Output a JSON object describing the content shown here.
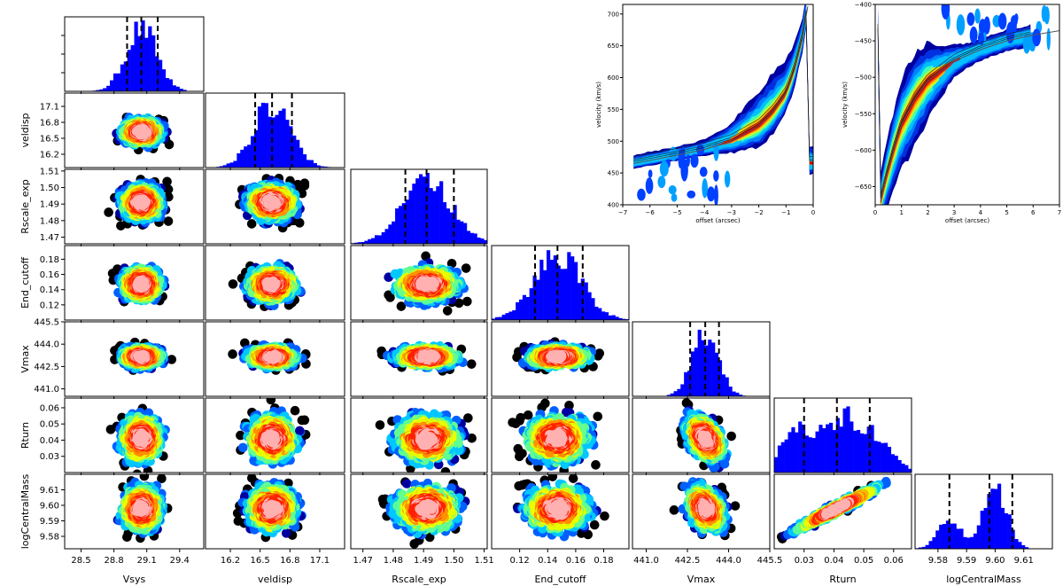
{
  "colors": {
    "histogram": "#0000ff",
    "outlier_points": "#000000",
    "density_scale": [
      "#0000a0",
      "#0060ff",
      "#00c8ff",
      "#60ff90",
      "#e8ff00",
      "#ff9000",
      "#ff2000",
      "#ffb0b0"
    ],
    "quantile_lines": "#000000",
    "model_curve": "#555555"
  },
  "chart_data": {
    "type": "corner",
    "parameters": [
      "Vsys",
      "veldisp",
      "Rscale_exp",
      "End_cutoff",
      "Vmax",
      "Rturn",
      "logCentralMass"
    ],
    "quantiles": {
      "Vsys": [
        28.92,
        29.05,
        29.2
      ],
      "veldisp": [
        16.45,
        16.62,
        16.82
      ],
      "Rscale_exp": [
        1.484,
        1.491,
        1.5
      ],
      "End_cutoff": [
        0.131,
        0.147,
        0.165
      ],
      "Vmax": [
        442.6,
        443.15,
        443.65
      ],
      "Rturn": [
        0.03,
        0.041,
        0.052
      ],
      "logCentralMass": [
        9.584,
        9.598,
        9.606
      ]
    },
    "ranges": {
      "Vsys": [
        28.35,
        29.62
      ],
      "veldisp": [
        15.95,
        17.35
      ],
      "Rscale_exp": [
        1.466,
        1.511
      ],
      "End_cutoff": [
        0.1,
        0.198
      ],
      "Vmax": [
        440.5,
        445.5
      ],
      "Rturn": [
        0.02,
        0.066
      ],
      "logCentralMass": [
        9.572,
        9.62
      ]
    },
    "ticks": {
      "Vsys": [
        "28.5",
        "28.8",
        "29.1",
        "29.4"
      ],
      "veldisp": [
        "16.2",
        "16.5",
        "16.8",
        "17.1"
      ],
      "Rscale_exp": [
        "1.47",
        "1.48",
        "1.49",
        "1.50",
        "1.51"
      ],
      "End_cutoff": [
        "0.12",
        "0.14",
        "0.16",
        "0.18"
      ],
      "Vmax": [
        "441.0",
        "442.5",
        "444.0",
        "445.5"
      ],
      "Rturn": [
        "0.03",
        "0.04",
        "0.05",
        "0.06"
      ],
      "logCentralMass": [
        "9.58",
        "9.59",
        "9.60",
        "9.61"
      ]
    },
    "ytick_labels": {
      "veldisp": [
        "17.1",
        "16.8",
        "16.5",
        "16.2"
      ],
      "Rscale_exp": [
        "1.51",
        "1.50",
        "1.49",
        "1.48",
        "1.47"
      ],
      "End_cutoff": [
        "0.18",
        "0.16",
        "0.14",
        "0.12"
      ],
      "Vmax": [
        "445.5",
        "444.0",
        "442.5",
        "441.0"
      ],
      "Rturn": [
        "0.06",
        "0.05",
        "0.04",
        "0.03"
      ],
      "logCentralMass": [
        "9.61",
        "9.60",
        "9.59",
        "9.58"
      ]
    },
    "pv_left": {
      "type": "contour",
      "xlabel": "offset (arcsec)",
      "ylabel": "velocity (km/s)",
      "xlim": [
        -7,
        0
      ],
      "ylim": [
        400,
        715
      ],
      "xticks": [
        "−7",
        "−6",
        "−5",
        "−4",
        "−3",
        "−2",
        "−1",
        "0"
      ],
      "yticks": [
        "700",
        "650",
        "600",
        "550",
        "500",
        "450",
        "400"
      ],
      "model_curve": [
        [
          -6.6,
          465
        ],
        [
          -5,
          478
        ],
        [
          -4,
          487
        ],
        [
          -3,
          500
        ],
        [
          -2,
          524
        ],
        [
          -1.5,
          545
        ],
        [
          -1,
          575
        ],
        [
          -0.7,
          610
        ],
        [
          -0.4,
          660
        ],
        [
          -0.2,
          712
        ]
      ]
    },
    "pv_right": {
      "type": "contour",
      "xlabel": "offset (arcsec)",
      "ylabel": "velocity (km/s)",
      "xlim": [
        0,
        7
      ],
      "ylim": [
        -675,
        -400
      ],
      "xticks": [
        "0",
        "1",
        "2",
        "3",
        "4",
        "5",
        "6",
        "7"
      ],
      "yticks": [
        "−400",
        "−450",
        "−500",
        "−550",
        "−600",
        "−650"
      ],
      "model_curve": [
        [
          0.2,
          -672
        ],
        [
          0.4,
          -640
        ],
        [
          0.7,
          -600
        ],
        [
          1,
          -565
        ],
        [
          1.5,
          -530
        ],
        [
          2,
          -505
        ],
        [
          3,
          -478
        ],
        [
          4,
          -462
        ],
        [
          5,
          -450
        ],
        [
          6,
          -442
        ],
        [
          7,
          -436
        ]
      ]
    }
  }
}
